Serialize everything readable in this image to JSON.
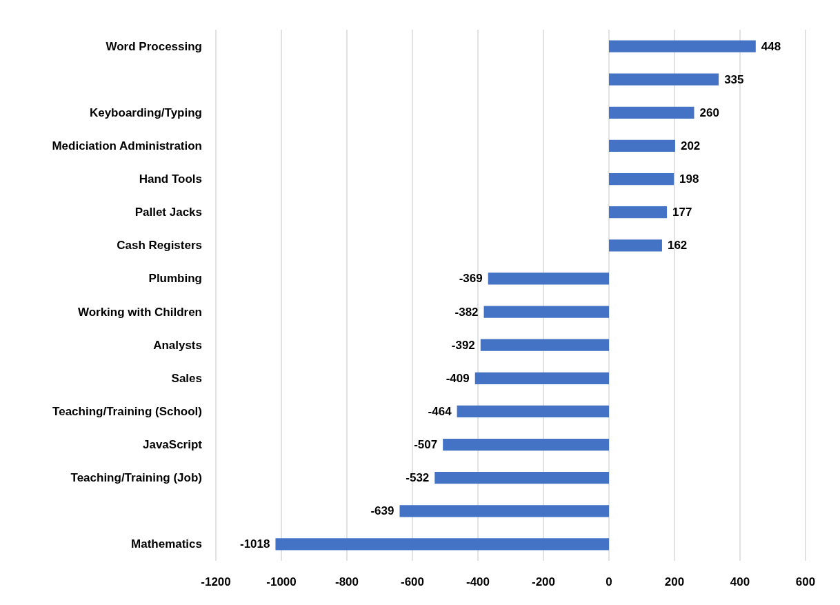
{
  "chart_data": {
    "type": "bar",
    "orientation": "horizontal",
    "categories": [
      "Word Processing",
      null,
      "Keyboarding/Typing",
      "Mediciation Administration",
      "Hand Tools",
      "Pallet Jacks",
      "Cash Registers",
      "Plumbing",
      "Working with Children",
      "Analysts",
      "Sales",
      "Teaching/Training (School)",
      "JavaScript",
      "Teaching/Training (Job)",
      null,
      "Mathematics"
    ],
    "values": [
      448,
      335,
      260,
      202,
      198,
      177,
      162,
      -369,
      -382,
      -392,
      -409,
      -464,
      -507,
      -532,
      -639,
      -1018
    ],
    "color": "#4472c4",
    "xlim": [
      -1200,
      600
    ],
    "xticks": [
      -1200,
      -1000,
      -800,
      -600,
      -400,
      -200,
      0,
      200,
      400,
      600
    ],
    "grid": "x",
    "data_labels": true
  }
}
